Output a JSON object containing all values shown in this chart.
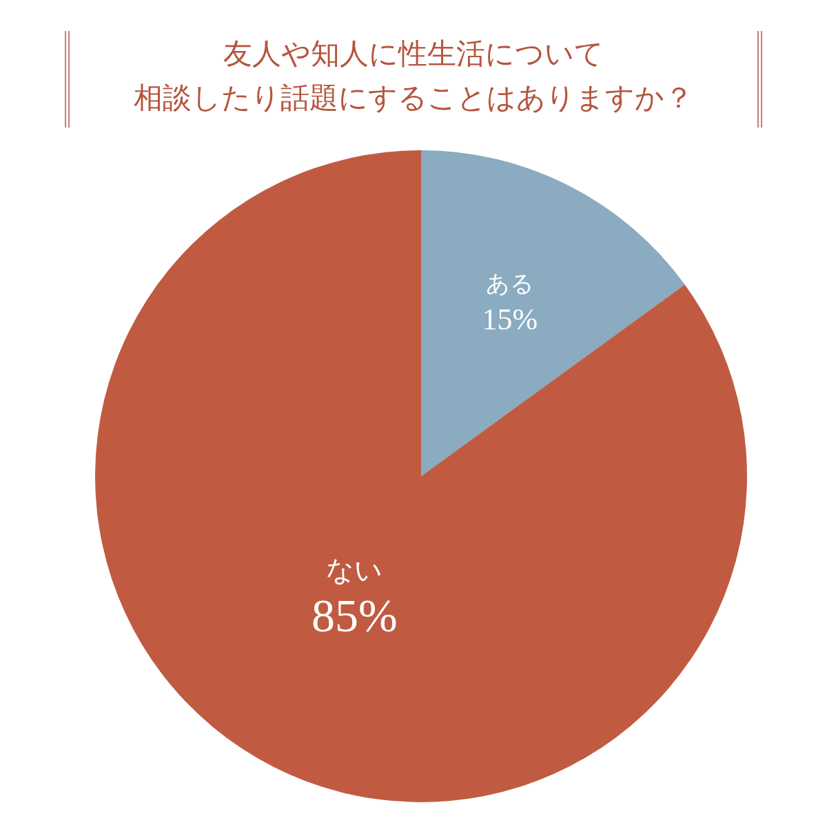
{
  "chart_data": {
    "type": "pie",
    "title": "友人や知人に性生活について",
    "subtitle": "相談したり話題にすることはありますか？",
    "categories": [
      "ある",
      "ない"
    ],
    "values": [
      15,
      85
    ],
    "colors": [
      "#8aabc0",
      "#c05b42"
    ],
    "value_labels": [
      "15%",
      "85%"
    ]
  }
}
